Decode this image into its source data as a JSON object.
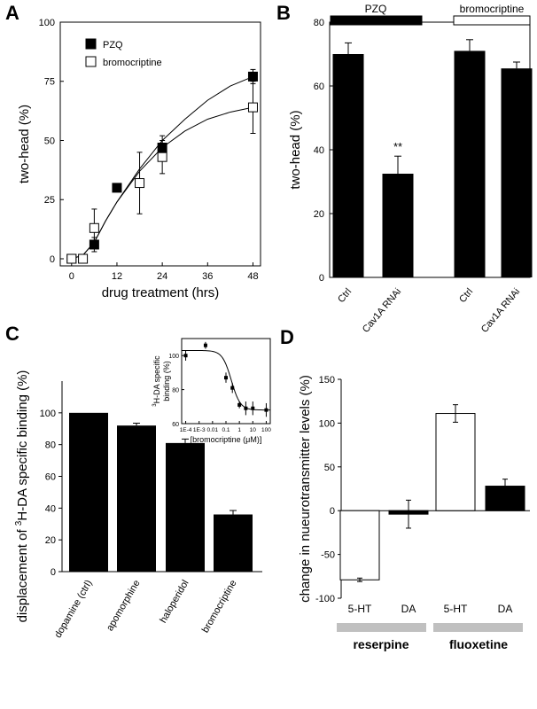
{
  "panels": {
    "a": {
      "letter": "A"
    },
    "b": {
      "letter": "B"
    },
    "c": {
      "letter": "C"
    },
    "d": {
      "letter": "D"
    }
  },
  "chart_data": [
    {
      "panel": "A",
      "type": "scatter",
      "xlabel": "drug treatment (hrs)",
      "ylabel": "two-head (%)",
      "xlim": [
        -3,
        50
      ],
      "ylim": [
        -3,
        100
      ],
      "xticks": [
        0,
        12,
        24,
        36,
        48
      ],
      "yticks": [
        0,
        25,
        50,
        75,
        100
      ],
      "legend_position": "top-left",
      "series": [
        {
          "name": "PZQ",
          "marker": "filled-square",
          "color": "#000000",
          "x": [
            0,
            6,
            12,
            24,
            48
          ],
          "y": [
            0,
            6,
            30,
            47,
            77
          ],
          "error": [
            0,
            3,
            0,
            5,
            3
          ]
        },
        {
          "name": "bromocriptine",
          "marker": "open-square",
          "color": "#000000",
          "x": [
            0,
            3,
            6,
            18,
            24,
            48
          ],
          "y": [
            0,
            0,
            13,
            32,
            43,
            64
          ],
          "error": [
            0,
            0,
            8,
            13,
            7,
            11
          ]
        }
      ],
      "fits": [
        {
          "series": "PZQ",
          "x": [
            0,
            3,
            6,
            9,
            12,
            18,
            24,
            30,
            36,
            42,
            48
          ],
          "y": [
            0,
            1.5,
            7,
            16,
            24,
            38,
            50,
            59,
            67,
            73,
            77
          ]
        },
        {
          "series": "bromocriptine",
          "x": [
            0,
            3,
            6,
            9,
            12,
            18,
            24,
            30,
            36,
            42,
            48
          ],
          "y": [
            0,
            1.5,
            7,
            16,
            24,
            37,
            47,
            54,
            59,
            62,
            64
          ]
        }
      ]
    },
    {
      "panel": "B",
      "type": "bar",
      "ylabel": "two-head (%)",
      "ylim": [
        0,
        80
      ],
      "yticks": [
        0,
        20,
        40,
        60,
        80
      ],
      "categories": [
        "Ctrl",
        "Cav1A RNAi",
        "Ctrl",
        "Cav1A RNAi"
      ],
      "values": [
        70,
        32.5,
        71,
        65.5
      ],
      "errors": [
        3.5,
        5.5,
        3.5,
        2
      ],
      "groups": [
        {
          "name": "PZQ",
          "fill": "#000000"
        },
        {
          "name": "bromocriptine",
          "fill": "#ffffff"
        }
      ],
      "annotations": [
        {
          "category_index": 1,
          "text": "**"
        }
      ]
    },
    {
      "panel": "C",
      "type": "bar",
      "ylabel_prefix": "displacement of ",
      "ylabel_sup": "3",
      "ylabel_suffix": "H-DA specific binding (%)",
      "ylim": [
        0,
        120
      ],
      "yticks": [
        0,
        20,
        40,
        60,
        80,
        100
      ],
      "categories": [
        "dopamine (ctrl)",
        "apomorphine",
        "haloperidol",
        "bromocriptine"
      ],
      "values": [
        100,
        92,
        81,
        36
      ],
      "errors": [
        0,
        1.5,
        2.5,
        2.5
      ],
      "inset": {
        "type": "scatter",
        "xlabel_prefix": "[bromocriptine (",
        "xlabel_unit": "μM",
        "xlabel_suffix": ")]",
        "ylabel_sup": "3",
        "ylabel_line1": "H-DA specific",
        "ylabel_line2": "binding (%)",
        "xscale": "log",
        "xlim": [
          5e-05,
          200
        ],
        "ylim": [
          60,
          110
        ],
        "xtick_labels": [
          "1E-4",
          "1E-3",
          "0.01",
          "0.1",
          "1",
          "10",
          "100"
        ],
        "xtick_values": [
          0.0001,
          0.001,
          0.01,
          0.1,
          1,
          10,
          100
        ],
        "yticks": [
          60,
          80,
          100
        ],
        "x": [
          0.0001,
          0.003,
          0.1,
          0.3,
          1,
          3,
          10,
          100
        ],
        "y": [
          100,
          106,
          87,
          81,
          71,
          69,
          69,
          68
        ],
        "error": [
          3,
          2,
          3,
          3,
          2,
          4,
          4,
          4
        ],
        "fit": {
          "top": 103,
          "bottom": 68,
          "ec50": 0.25,
          "hill": 1.3
        }
      }
    },
    {
      "panel": "D",
      "type": "bar",
      "ylabel": "change in nueurotransmitter levels (%)",
      "ylim": [
        -100,
        150
      ],
      "yticks": [
        -100,
        -50,
        0,
        50,
        100,
        150
      ],
      "categories": [
        "5-HT",
        "DA",
        "5-HT",
        "DA"
      ],
      "values": [
        -79,
        -4,
        111,
        28
      ],
      "errors": [
        2,
        16,
        10,
        8
      ],
      "fills": [
        "#ffffff",
        "#000000",
        "#ffffff",
        "#000000"
      ],
      "groups": [
        {
          "name": "reserpine",
          "color": "#c0c0c0"
        },
        {
          "name": "fluoxetine",
          "color": "#c0c0c0"
        }
      ]
    }
  ]
}
